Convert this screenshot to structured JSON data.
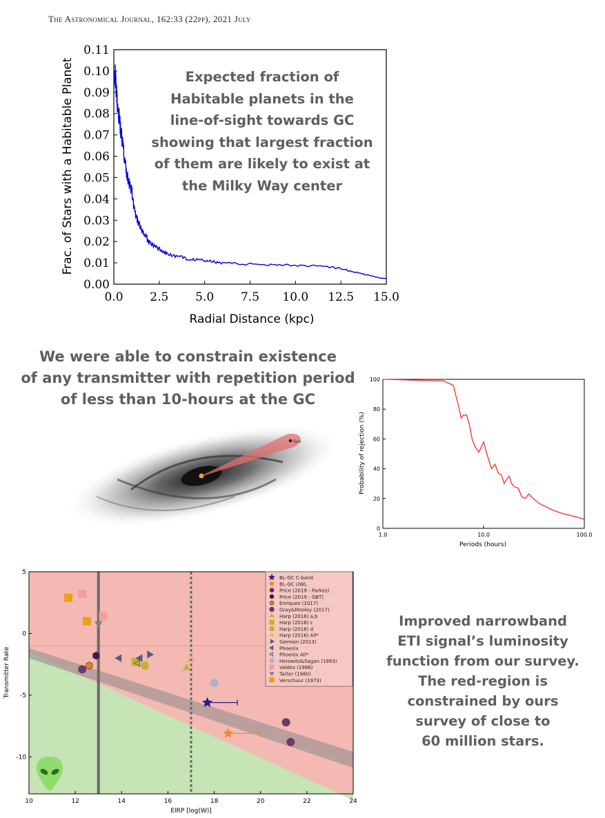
{
  "header": {
    "journal_line": "The Astronomical Journal, 162:33 (22pp), 2021 July"
  },
  "captions": {
    "habitable": [
      "Expected fraction of",
      "Habitable planets in the",
      "line-of-sight towards GC",
      "showing that largest fraction",
      "of them are likely to exist at",
      "the Milky Way center"
    ],
    "transmitter": [
      "We were able to constrain existence",
      "of any transmitter with repetition period",
      "of less than 10-hours at the GC"
    ],
    "luminosity": [
      "Improved narrowband",
      "ETI signal’s luminosity",
      "function from our survey.",
      "The red-region is",
      "constrained by ours",
      "survey of close to",
      "60 million stars."
    ]
  },
  "galaxy": {
    "marker_label": "Sun"
  },
  "chart_data": [
    {
      "type": "line",
      "xlabel": "Radial Distance (kpc)",
      "ylabel": "Frac. of Stars with a Habitable Planet",
      "xlim": [
        0,
        15
      ],
      "ylim": [
        0,
        0.11
      ],
      "x_ticks": [
        "0.0",
        "2.5",
        "5.0",
        "7.5",
        "10.0",
        "12.5",
        "15.0"
      ],
      "y_ticks": [
        "0.00",
        "0.01",
        "0.02",
        "0.03",
        "0.04",
        "0.05",
        "0.06",
        "0.07",
        "0.08",
        "0.09",
        "0.10",
        "0.11"
      ],
      "line_color": "#0000dd",
      "series": [
        {
          "x": [
            0.0,
            0.1,
            0.2,
            0.3,
            0.4,
            0.5,
            0.6,
            0.7,
            0.8,
            0.9,
            1.0,
            1.1,
            1.2,
            1.3,
            1.4,
            1.5,
            1.6,
            1.7,
            1.8,
            1.9,
            2.0,
            2.2,
            2.4,
            2.6,
            2.8,
            3.0,
            3.5,
            4.0,
            4.5,
            5.0,
            5.5,
            6.0,
            7.0,
            8.0,
            9.0,
            10.0,
            11.0,
            12.0,
            12.5,
            13.0,
            13.5,
            14.0,
            14.5,
            15.0
          ],
          "y": [
            0.105,
            0.095,
            0.085,
            0.078,
            0.071,
            0.065,
            0.058,
            0.052,
            0.049,
            0.046,
            0.043,
            0.036,
            0.032,
            0.03,
            0.028,
            0.026,
            0.024,
            0.023,
            0.022,
            0.02,
            0.019,
            0.018,
            0.017,
            0.016,
            0.015,
            0.014,
            0.013,
            0.012,
            0.0115,
            0.011,
            0.0105,
            0.01,
            0.0095,
            0.0093,
            0.0092,
            0.0088,
            0.0085,
            0.0078,
            0.0072,
            0.0062,
            0.0052,
            0.0042,
            0.0032,
            0.0025
          ]
        }
      ]
    },
    {
      "type": "line",
      "xlabel": "Periods (hours)",
      "ylabel": "Probability of rejection (%)",
      "x_scale": "log",
      "xlim": [
        1,
        100
      ],
      "ylim": [
        0,
        100
      ],
      "x_ticks": [
        "1.0",
        "10.0",
        "100.0"
      ],
      "y_ticks": [
        "0",
        "20",
        "40",
        "60",
        "80",
        "100"
      ],
      "line_color": "#ff2a2a",
      "series": [
        {
          "x": [
            1.0,
            2.0,
            4.0,
            5.0,
            5.5,
            6.0,
            6.3,
            6.8,
            7.2,
            7.7,
            8.2,
            9.0,
            10.0,
            11.0,
            12.0,
            13.0,
            14.0,
            15.0,
            16.0,
            17.0,
            18.0,
            19.0,
            20.0,
            22.0,
            24.0,
            26.0,
            28.0,
            30.0,
            35.0,
            40.0,
            50.0,
            60.0,
            80.0,
            100.0
          ],
          "y": [
            100,
            99.5,
            99,
            96,
            85,
            74,
            76,
            76,
            70,
            60,
            55,
            51,
            58,
            48,
            40,
            43,
            37,
            36,
            30,
            33,
            35,
            30,
            28,
            27,
            21,
            20,
            23,
            21,
            17,
            15,
            12,
            10,
            8,
            6
          ]
        }
      ]
    },
    {
      "type": "scatter",
      "xlabel": "EIRP [log(W)]",
      "ylabel": "Transmitter Rate",
      "xlim": [
        10,
        24
      ],
      "ylim": [
        -13,
        5
      ],
      "x_ticks": [
        "10",
        "12",
        "14",
        "16",
        "18",
        "20",
        "22",
        "24"
      ],
      "y_ticks": [
        "5",
        "0",
        "-5",
        "-10"
      ],
      "legend_position": "top-right",
      "vlines": [
        {
          "x": 13.0,
          "style": "solid"
        },
        {
          "x": 17.0,
          "style": "dotted"
        }
      ],
      "series": [
        {
          "name": "BL-GC C-band",
          "marker": "star",
          "color": "#2a1a8f",
          "points": [
            [
              17.7,
              -5.6
            ]
          ],
          "xerr_to": 19.0
        },
        {
          "name": "BL-GC UWL",
          "marker": "star",
          "color": "#e89030",
          "points": [
            [
              18.6,
              -8.1
            ]
          ],
          "xerr_to": 20.0
        },
        {
          "name": "Price (2019 - Parkes)",
          "marker": "hexagon",
          "color": "#8b1a7a",
          "points": []
        },
        {
          "name": "Price (2019 - GBT)",
          "marker": "hexagon",
          "color": "#5a0a50",
          "points": [
            [
              12.9,
              -1.8
            ]
          ]
        },
        {
          "name": "Enriquez (2017)",
          "marker": "hexagon",
          "color": "#e8802a",
          "points": [
            [
              12.6,
              -2.6
            ]
          ]
        },
        {
          "name": "Gray&Mooley (2017)",
          "marker": "circle",
          "color": "#6a3a6a",
          "points": [
            [
              21.1,
              -7.2
            ],
            [
              21.3,
              -8.8
            ],
            [
              12.3,
              -2.9
            ]
          ]
        },
        {
          "name": "Harp (2016) a,b",
          "marker": "triangle-up",
          "color": "#c8b030",
          "points": [
            [
              16.8,
              -2.8
            ]
          ]
        },
        {
          "name": "Harp (2016) c",
          "marker": "square",
          "color": "#c8b030",
          "points": [
            [
              14.6,
              -2.3
            ]
          ]
        },
        {
          "name": "Harp (2016) d",
          "marker": "circle",
          "color": "#c8b030",
          "points": [
            [
              15.0,
              -2.6
            ]
          ]
        },
        {
          "name": "Harp (2016) All*",
          "marker": "triangle-up-open",
          "color": "#e8a060",
          "points": [
            [
              17.0,
              -2.1
            ]
          ]
        },
        {
          "name": "Siemion (2013)",
          "marker": "triangle-right",
          "color": "#5a5a7a",
          "points": [
            [
              15.2,
              -1.7
            ]
          ]
        },
        {
          "name": "Phoenix",
          "marker": "triangle-left",
          "color": "#5a5a7a",
          "points": [
            [
              13.9,
              -2.0
            ],
            [
              14.8,
              -2.0
            ]
          ]
        },
        {
          "name": "Phoenix All*",
          "marker": "triangle-left-open",
          "color": "#5a5a7a",
          "points": [
            [
              14.7,
              -2.4
            ]
          ]
        },
        {
          "name": "Horowitz&Sagan (1993)",
          "marker": "circle",
          "color": "#b0b0c8",
          "points": [
            [
              18.0,
              -4.0
            ]
          ]
        },
        {
          "name": "Valdes (1986)",
          "marker": "square",
          "color": "#f0a0a0",
          "points": [
            [
              12.3,
              3.2
            ],
            [
              13.2,
              1.4
            ]
          ]
        },
        {
          "name": "Tarter (1980)",
          "marker": "triangle-down",
          "color": "#808080",
          "points": [
            [
              13.0,
              0.8
            ]
          ]
        },
        {
          "name": "Verschuur (1973)",
          "marker": "square",
          "color": "#e8a020",
          "points": [
            [
              11.7,
              2.9
            ],
            [
              12.5,
              1.0
            ]
          ]
        }
      ]
    }
  ]
}
